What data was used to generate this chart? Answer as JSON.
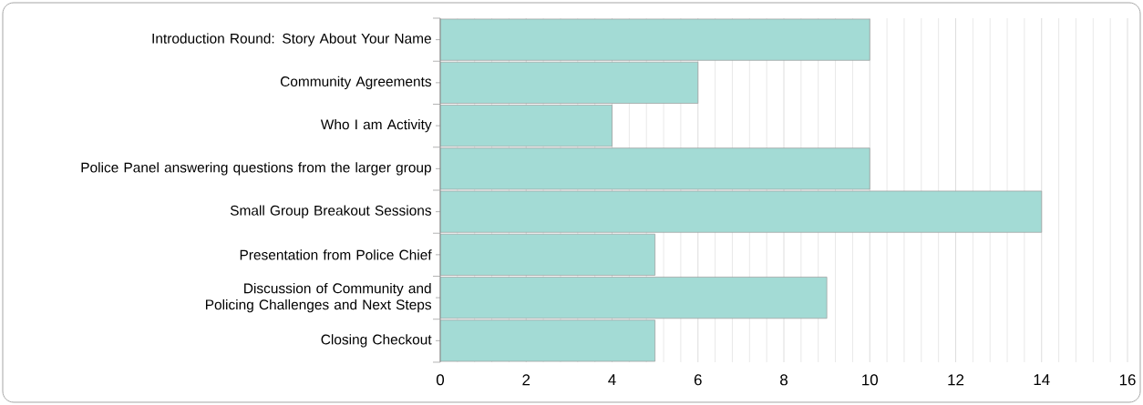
{
  "chart_data": {
    "type": "bar",
    "orientation": "horizontal",
    "categories": [
      "Introduction Round: Story About Your Name",
      "Community Agreements",
      "Who I am Activity",
      "Police Panel answering questions from the larger group",
      "Small Group Breakout Sessions",
      "Presentation from Police Chief",
      "Discussion of Community and Policing Challenges and Next Steps",
      "Closing Checkout"
    ],
    "values": [
      10,
      6,
      4,
      10,
      14,
      5,
      9,
      5
    ],
    "color": "#a3dbd5",
    "xlim": [
      0,
      16
    ],
    "xticks": [
      0,
      2,
      4,
      6,
      8,
      10,
      12,
      14,
      16
    ],
    "grid": "x"
  }
}
